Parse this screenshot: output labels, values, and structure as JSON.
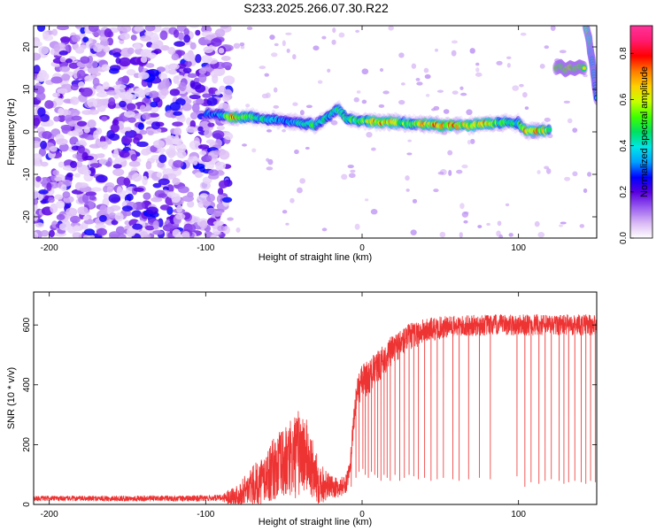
{
  "title": "S233.2025.266.07.30.R22",
  "chart_data": [
    {
      "type": "heatmap",
      "xlabel": "Height of straight line (km)",
      "ylabel": "Frequency (Hz)",
      "xlim": [
        -210,
        150
      ],
      "ylim": [
        -25,
        25
      ],
      "xticks": [
        -200,
        -100,
        0,
        100
      ],
      "yticks": [
        -20,
        -10,
        0,
        10,
        20
      ],
      "colorbar": {
        "label": "Normalized spectral amplitude",
        "range": [
          0,
          0.92
        ],
        "ticks": [
          0.0,
          0.2,
          0.4,
          0.6,
          0.8
        ],
        "colors": [
          "#ffffff",
          "#d9b8f5",
          "#9a5ef0",
          "#5a00e0",
          "#0000ff",
          "#00a0ff",
          "#00e6e6",
          "#00e060",
          "#40ff00",
          "#c8ff00",
          "#ffd000",
          "#ff7a00",
          "#ff0000",
          "#ff1a6e",
          "#ff3399"
        ]
      },
      "noise_region": {
        "x_range": [
          -210,
          -85
        ],
        "y_range": [
          -25,
          25
        ],
        "level": 0.12
      },
      "ridge": [
        {
          "x": -100,
          "f": 4.2,
          "a": 0.32
        },
        {
          "x": -90,
          "f": 4.0,
          "a": 0.4
        },
        {
          "x": -82,
          "f": 3.3,
          "a": 0.8
        },
        {
          "x": -70,
          "f": 3.5,
          "a": 0.55
        },
        {
          "x": -60,
          "f": 3.0,
          "a": 0.45
        },
        {
          "x": -50,
          "f": 2.6,
          "a": 0.4
        },
        {
          "x": -40,
          "f": 2.2,
          "a": 0.45
        },
        {
          "x": -30,
          "f": 1.6,
          "a": 0.55
        },
        {
          "x": -20,
          "f": 4.0,
          "a": 0.45
        },
        {
          "x": -15,
          "f": 5.5,
          "a": 0.55
        },
        {
          "x": -10,
          "f": 3.0,
          "a": 0.55
        },
        {
          "x": 0,
          "f": 2.6,
          "a": 0.6
        },
        {
          "x": 10,
          "f": 2.4,
          "a": 0.8
        },
        {
          "x": 20,
          "f": 2.2,
          "a": 0.7
        },
        {
          "x": 30,
          "f": 2.0,
          "a": 0.55
        },
        {
          "x": 40,
          "f": 1.8,
          "a": 0.75
        },
        {
          "x": 50,
          "f": 1.6,
          "a": 0.8
        },
        {
          "x": 60,
          "f": 1.6,
          "a": 0.8
        },
        {
          "x": 70,
          "f": 1.5,
          "a": 0.7
        },
        {
          "x": 80,
          "f": 2.0,
          "a": 0.75
        },
        {
          "x": 90,
          "f": 2.2,
          "a": 0.55
        },
        {
          "x": 100,
          "f": 2.0,
          "a": 0.5
        },
        {
          "x": 105,
          "f": 0.2,
          "a": 0.8
        },
        {
          "x": 112,
          "f": 0.2,
          "a": 0.85
        },
        {
          "x": 120,
          "f": 0.5,
          "a": 0.6
        }
      ],
      "secondary_tracks": [
        {
          "x": [
            124,
            127,
            130,
            133,
            136,
            139,
            142
          ],
          "f": [
            15.0,
            15.5,
            14.5,
            15.2,
            14.8,
            15.4,
            15.0
          ],
          "a": [
            0.75,
            0.7,
            0.72,
            0.8,
            0.7,
            0.74,
            0.65
          ]
        },
        {
          "x": [
            143,
            145,
            146,
            147,
            148,
            149,
            150
          ],
          "f": [
            25.0,
            22.0,
            19.0,
            17.0,
            14.0,
            11.0,
            8.0
          ],
          "a": [
            0.6,
            0.55,
            0.5,
            0.45,
            0.45,
            0.42,
            0.4
          ]
        }
      ]
    },
    {
      "type": "line",
      "xlabel": "Height of straight line (km)",
      "ylabel": "SNR (10 * v/v)",
      "xlim": [
        -210,
        150
      ],
      "ylim": [
        0,
        710
      ],
      "xticks": [
        -200,
        -100,
        0,
        100
      ],
      "yticks": [
        0,
        200,
        400,
        600
      ],
      "color": "#ee3333",
      "x": [
        -210,
        -190,
        -170,
        -150,
        -130,
        -110,
        -90,
        -80,
        -75,
        -70,
        -65,
        -60,
        -55,
        -50,
        -45,
        -40,
        -35,
        -30,
        -25,
        -20,
        -15,
        -10,
        -8,
        -5,
        -3,
        0,
        5,
        10,
        15,
        20,
        25,
        30,
        40,
        50,
        60,
        80,
        100,
        120,
        140,
        150
      ],
      "y": [
        20,
        20,
        20,
        20,
        20,
        20,
        22,
        30,
        45,
        60,
        75,
        100,
        125,
        135,
        150,
        175,
        160,
        90,
        70,
        60,
        55,
        70,
        120,
        300,
        380,
        410,
        430,
        460,
        490,
        520,
        540,
        560,
        580,
        590,
        595,
        600,
        600,
        600,
        600,
        600
      ],
      "noise_band": {
        "x": [
          -210,
          -90,
          -80,
          -40,
          -20,
          -8,
          0,
          30,
          60,
          150
        ],
        "amp": [
          8,
          10,
          40,
          150,
          35,
          30,
          60,
          45,
          35,
          35
        ]
      },
      "dropouts": [
        [
          -7,
          60
        ],
        [
          -4,
          90
        ],
        [
          -2,
          110
        ],
        [
          0.5,
          120
        ],
        [
          2,
          100
        ],
        [
          4,
          90
        ],
        [
          6,
          110
        ],
        [
          8,
          100
        ],
        [
          10,
          90
        ],
        [
          12,
          80
        ],
        [
          14,
          100
        ],
        [
          16,
          90
        ],
        [
          18,
          80
        ],
        [
          21,
          100
        ],
        [
          24,
          80
        ],
        [
          27,
          90
        ],
        [
          30,
          100
        ],
        [
          33,
          95
        ],
        [
          36,
          85
        ],
        [
          40,
          90
        ],
        [
          44,
          80
        ],
        [
          48,
          85
        ],
        [
          52,
          90
        ],
        [
          58,
          85
        ],
        [
          62,
          80
        ],
        [
          68,
          85
        ],
        [
          75,
          90
        ],
        [
          82,
          85
        ],
        [
          99,
          95
        ],
        [
          104,
          60
        ],
        [
          108,
          75
        ],
        [
          113,
          70
        ],
        [
          117,
          80
        ],
        [
          121,
          85
        ],
        [
          126,
          80
        ],
        [
          129,
          70
        ],
        [
          132,
          75
        ],
        [
          136,
          80
        ],
        [
          140,
          75
        ],
        [
          143,
          70
        ],
        [
          146,
          80
        ],
        [
          149,
          75
        ]
      ]
    }
  ]
}
